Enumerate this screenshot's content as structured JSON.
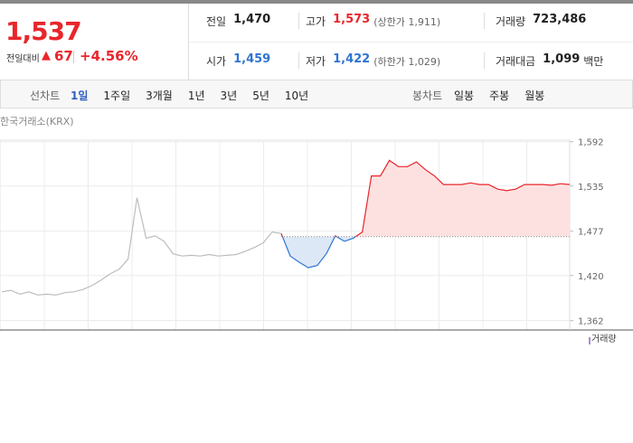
{
  "header": {
    "price": "1,537",
    "change_label": "전일대비",
    "change": "67",
    "change_rate": "+4.56%"
  },
  "info": [
    [
      {
        "label": "전일",
        "value": "1,470"
      },
      {
        "label": "고가",
        "value": "1,573",
        "extra": "(상한가 1,911)"
      },
      {
        "label": "거래량",
        "value": "723,486"
      }
    ],
    [
      {
        "label": "시가",
        "value": "1,459"
      },
      {
        "label": "저가",
        "value": "1,422",
        "extra": "(하한가 1,029)"
      },
      {
        "label": "거래대금",
        "value": "1,099",
        "unit": "백만"
      }
    ]
  ],
  "tabs": {
    "line_label": "선차트",
    "line": [
      "1일",
      "1주일",
      "3개월",
      "1년",
      "3년",
      "5년",
      "10년"
    ],
    "candle_label": "봉차트",
    "candle": [
      "일봉",
      "주봉",
      "월봉"
    ]
  },
  "chart_data": {
    "type": "line",
    "source": "한국거래소(KRX)",
    "volume_label": "거래량",
    "reference": 1470,
    "up_color": "#e8262b",
    "down_color": "#2f74d0",
    "up_fill": "#fde1e1",
    "down_fill": "#dde8f6",
    "ylim": [
      1350,
      1594
    ],
    "yticks": [
      {
        "value": 1592,
        "label": "1,592"
      },
      {
        "value": 1535,
        "label": "1,535"
      },
      {
        "value": 1477,
        "label": "1,477"
      },
      {
        "value": 1420,
        "label": "1,420"
      },
      {
        "value": 1362,
        "label": "1,362"
      }
    ],
    "grid": true,
    "series": [
      {
        "color": "#bdbdbd",
        "values": [
          1399,
          1401,
          1396,
          1399,
          1395,
          1396,
          1395,
          1398,
          1399,
          1402,
          1407,
          1414,
          1422,
          1428,
          1441,
          1520,
          1468,
          1471,
          1464,
          1448,
          1445,
          1446,
          1445,
          1447,
          1445,
          1446,
          1447,
          1451,
          1456,
          1462,
          1476,
          1474,
          null,
          null,
          null,
          null,
          null,
          null,
          null,
          null,
          null,
          null,
          null,
          null,
          null,
          null,
          null,
          null,
          null,
          null,
          null,
          null,
          null,
          null,
          null,
          null,
          null,
          null,
          null,
          null,
          null,
          null,
          null,
          null
        ]
      },
      {
        "color": "relative",
        "values": [
          null,
          null,
          null,
          null,
          null,
          null,
          null,
          null,
          null,
          null,
          null,
          null,
          null,
          null,
          null,
          null,
          null,
          null,
          null,
          null,
          null,
          null,
          null,
          null,
          null,
          null,
          null,
          null,
          null,
          null,
          null,
          1474,
          1445,
          1437,
          1430,
          1433,
          1448,
          1471,
          1464,
          1468,
          1476,
          1548,
          1548,
          1568,
          1560,
          1560,
          1566,
          1556,
          1548,
          1537,
          1537,
          1537,
          1539,
          1537,
          1537,
          1531,
          1529,
          1531,
          1537,
          1537,
          1537,
          1536,
          1538,
          1537
        ]
      }
    ]
  }
}
